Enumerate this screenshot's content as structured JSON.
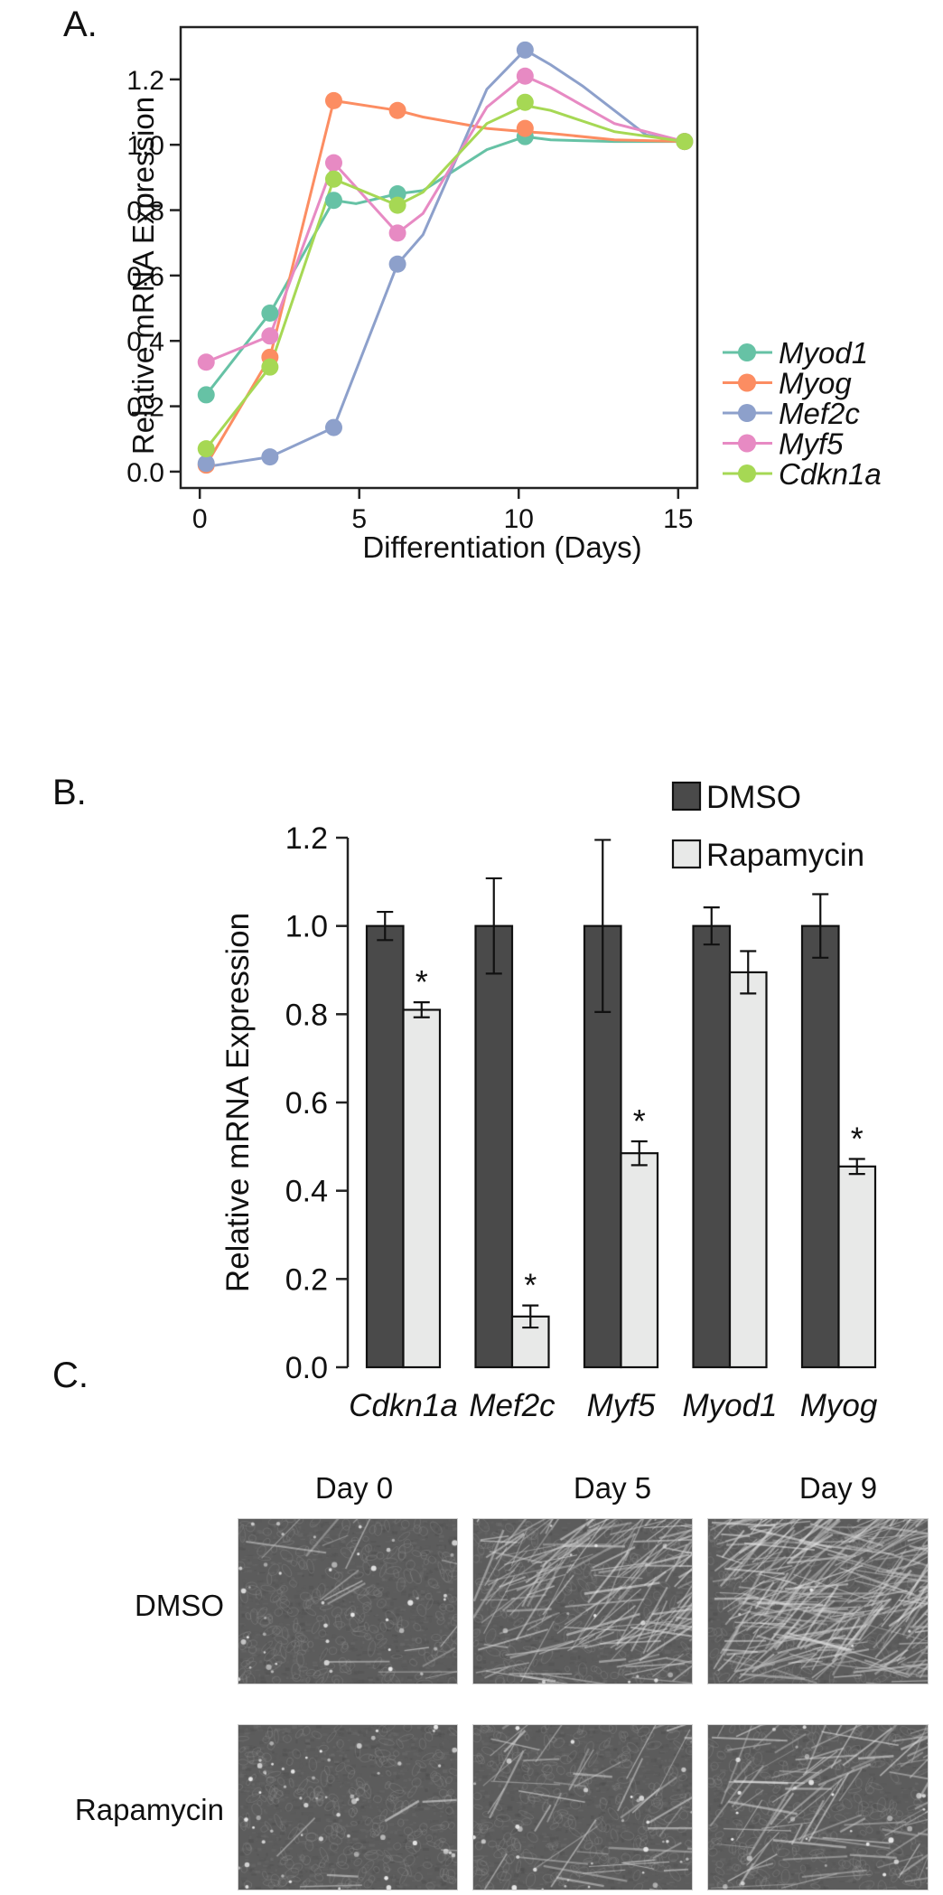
{
  "chart_data": [
    {
      "panel_label": "A.",
      "type": "line",
      "xlabel": "Differentiation (Days)",
      "ylabel": "Relative mRNA Expression",
      "xlim": [
        -0.6,
        15.6
      ],
      "ylim": [
        -0.05,
        1.36
      ],
      "xticks": [
        0,
        5,
        10,
        15
      ],
      "yticks": [
        0.0,
        0.2,
        0.4,
        0.6,
        0.8,
        1.0,
        1.2
      ],
      "ytick_labels": [
        "0.0",
        "0.2",
        "0.4",
        "0.6",
        "0.8",
        "1.0",
        "1.2"
      ],
      "legend_position": "bottom-right",
      "grid": false,
      "series": [
        {
          "name": "Myod1",
          "color": "#66c2a5",
          "points": [
            [
              0.2,
              0.235
            ],
            [
              2.2,
              0.485
            ],
            [
              4.2,
              0.83
            ],
            [
              6.2,
              0.85
            ],
            [
              10.2,
              1.025
            ],
            [
              15.2,
              1.01
            ]
          ],
          "curve": [
            [
              0.2,
              0.235
            ],
            [
              2.2,
              0.485
            ],
            [
              4.2,
              0.83
            ],
            [
              4.9,
              0.82
            ],
            [
              6.2,
              0.85
            ],
            [
              7.0,
              0.86
            ],
            [
              9.0,
              0.985
            ],
            [
              10.2,
              1.025
            ],
            [
              11.0,
              1.015
            ],
            [
              13.0,
              1.01
            ],
            [
              15.2,
              1.01
            ]
          ]
        },
        {
          "name": "Myog",
          "color": "#fc8d62",
          "points": [
            [
              0.2,
              0.02
            ],
            [
              2.2,
              0.35
            ],
            [
              4.2,
              1.135
            ],
            [
              6.2,
              1.105
            ],
            [
              10.2,
              1.05
            ],
            [
              15.2,
              1.01
            ]
          ],
          "curve": [
            [
              0.2,
              0.02
            ],
            [
              2.2,
              0.35
            ],
            [
              4.2,
              1.135
            ],
            [
              6.2,
              1.105
            ],
            [
              7.0,
              1.085
            ],
            [
              9.0,
              1.05
            ],
            [
              10.2,
              1.04
            ],
            [
              11.0,
              1.035
            ],
            [
              13.0,
              1.015
            ],
            [
              15.2,
              1.01
            ]
          ]
        },
        {
          "name": "Mef2c",
          "color": "#8da0cb",
          "points": [
            [
              0.2,
              0.025
            ],
            [
              2.2,
              0.045
            ],
            [
              4.2,
              0.135
            ],
            [
              6.2,
              0.635
            ],
            [
              10.2,
              1.29
            ],
            [
              15.2,
              1.01
            ]
          ],
          "curve": [
            [
              0.2,
              0.015
            ],
            [
              2.2,
              0.045
            ],
            [
              4.2,
              0.135
            ],
            [
              6.2,
              0.635
            ],
            [
              7.0,
              0.725
            ],
            [
              9.0,
              1.17
            ],
            [
              10.2,
              1.29
            ],
            [
              11.0,
              1.245
            ],
            [
              12.0,
              1.18
            ],
            [
              14.0,
              1.03
            ],
            [
              15.2,
              1.01
            ]
          ]
        },
        {
          "name": "Myf5",
          "color": "#e78ac3",
          "points": [
            [
              0.2,
              0.335
            ],
            [
              2.2,
              0.415
            ],
            [
              4.2,
              0.945
            ],
            [
              6.2,
              0.73
            ],
            [
              10.2,
              1.21
            ],
            [
              15.2,
              1.01
            ]
          ],
          "curve": [
            [
              0.2,
              0.335
            ],
            [
              2.2,
              0.415
            ],
            [
              4.2,
              0.945
            ],
            [
              6.2,
              0.73
            ],
            [
              7.0,
              0.79
            ],
            [
              9.0,
              1.115
            ],
            [
              10.2,
              1.21
            ],
            [
              11.0,
              1.175
            ],
            [
              13.0,
              1.065
            ],
            [
              15.2,
              1.01
            ]
          ]
        },
        {
          "name": "Cdkn1a",
          "color": "#a6d854",
          "points": [
            [
              0.2,
              0.07
            ],
            [
              2.2,
              0.32
            ],
            [
              4.2,
              0.895
            ],
            [
              6.2,
              0.815
            ],
            [
              10.2,
              1.13
            ],
            [
              15.2,
              1.01
            ]
          ],
          "curve": [
            [
              0.2,
              0.07
            ],
            [
              2.2,
              0.32
            ],
            [
              4.2,
              0.895
            ],
            [
              6.2,
              0.815
            ],
            [
              7.0,
              0.855
            ],
            [
              9.0,
              1.065
            ],
            [
              10.2,
              1.12
            ],
            [
              11.0,
              1.105
            ],
            [
              13.0,
              1.04
            ],
            [
              15.2,
              1.01
            ]
          ]
        }
      ]
    },
    {
      "panel_label": "B.",
      "type": "bar",
      "ylabel": "Relative mRNA Expression",
      "ylim": [
        0,
        1.2
      ],
      "yticks": [
        0.0,
        0.2,
        0.4,
        0.6,
        0.8,
        1.0,
        1.2
      ],
      "ytick_labels": [
        "0.0",
        "0.2",
        "0.4",
        "0.6",
        "0.8",
        "1.0",
        "1.2"
      ],
      "categories": [
        "Cdkn1a",
        "Mef2c",
        "Myf5",
        "Myod1",
        "Myog"
      ],
      "legend_position": "top-right",
      "series": [
        {
          "name": "DMSO",
          "color": "#4a4a4a",
          "values": [
            1.0,
            1.0,
            1.0,
            1.0,
            1.0
          ],
          "errors": [
            0.032,
            0.108,
            0.195,
            0.042,
            0.072
          ],
          "significant": [
            false,
            false,
            false,
            false,
            false
          ]
        },
        {
          "name": "Rapamycin",
          "color": "#e8e9e8",
          "values": [
            0.81,
            0.115,
            0.485,
            0.895,
            0.455
          ],
          "errors": [
            0.017,
            0.025,
            0.027,
            0.048,
            0.017
          ],
          "significant": [
            true,
            true,
            true,
            false,
            true
          ]
        }
      ],
      "significance_symbol": "*"
    }
  ],
  "panel_c": {
    "panel_label": "C.",
    "columns": [
      "Day 0",
      "Day 5",
      "Day 9"
    ],
    "rows": [
      "DMSO",
      "Rapamycin"
    ],
    "images": [
      [
        {
          "fiber_density": 0.05,
          "cell_spots": 0.5
        },
        {
          "fiber_density": 0.55,
          "cell_spots": 0.15
        },
        {
          "fiber_density": 1.0,
          "cell_spots": 0.05
        }
      ],
      [
        {
          "fiber_density": 0.02,
          "cell_spots": 0.6
        },
        {
          "fiber_density": 0.15,
          "cell_spots": 0.35
        },
        {
          "fiber_density": 0.3,
          "cell_spots": 0.3
        }
      ]
    ]
  }
}
